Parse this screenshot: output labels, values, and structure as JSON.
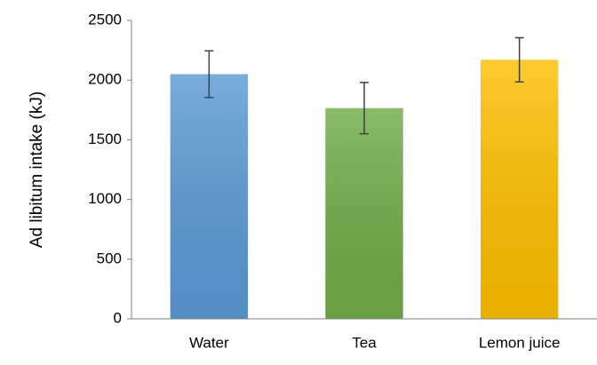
{
  "chart_data": {
    "type": "bar",
    "ylabel": "Ad libitum intake (kJ)",
    "categories": [
      "Water",
      "Tea",
      "Lemon juice"
    ],
    "values": [
      2050,
      1765,
      2170
    ],
    "errors": [
      195,
      215,
      185
    ],
    "colors": [
      "#5b9bd5",
      "#70ad47",
      "#ffc000"
    ],
    "ylim": [
      0,
      2500
    ],
    "yticks": [
      0,
      500,
      1000,
      1500,
      2000,
      2500
    ],
    "grid": false
  }
}
